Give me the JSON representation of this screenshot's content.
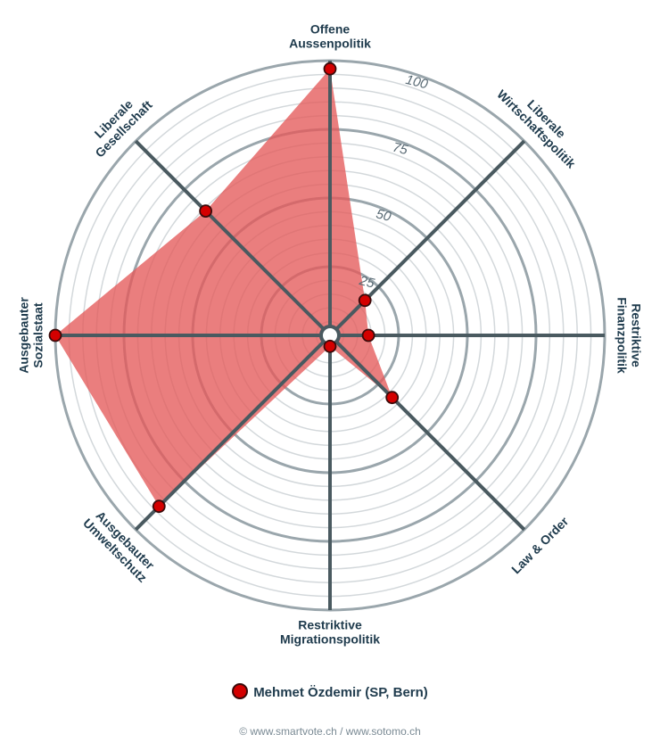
{
  "chart_data": {
    "type": "radar",
    "axes": [
      [
        "Offene",
        "Aussenpolitik"
      ],
      [
        "Liberale",
        "Wirtschaftspolitik"
      ],
      [
        "Restriktive",
        "Finanzpolitik"
      ],
      [
        "Law & Order"
      ],
      [
        "Restriktive",
        "Migrationspolitik"
      ],
      [
        "Ausgebauter",
        "Umweltschutz"
      ],
      [
        "Ausgebauter",
        "Sozialstaat"
      ],
      [
        "Liberale",
        "Gesellschaft"
      ]
    ],
    "series": [
      {
        "name": "Mehmet Özdemir (SP, Bern)",
        "values": [
          97,
          18,
          14,
          32,
          4,
          88,
          100,
          64
        ]
      }
    ],
    "range": [
      0,
      100
    ],
    "ticks": [
      25,
      50,
      75,
      100
    ],
    "fill_color": "#e45a5a",
    "marker_color": "#d40000",
    "axis_color": "#4a5a60",
    "grid_color": "#d3d8db",
    "major_grid_color": "#9aa6ac"
  },
  "legend": {
    "label": "Mehmet Özdemir (SP, Bern)"
  },
  "footer": {
    "text": "© www.smartvote.ch / www.sotomo.ch"
  }
}
